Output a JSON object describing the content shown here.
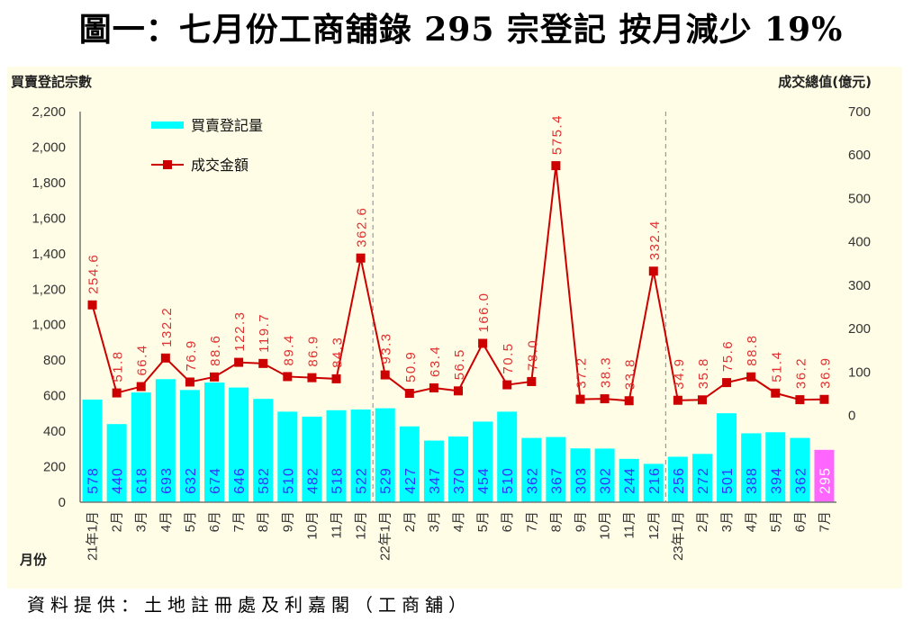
{
  "title": "圖一：七月份工商舖錄 295 宗登記  按月減少 19%",
  "source": "資料提供：土地註冊處及利嘉閣（工商舖）",
  "colors": {
    "bar": "#00ffff",
    "bar_highlight": "#ff66ff",
    "line": "#cc0000",
    "bar_label": "#3333ff",
    "line_label": "#e03030",
    "background": "#fffde6"
  },
  "chart_data": {
    "type": "bar+line",
    "title": "圖一：七月份工商舖錄 295 宗登記  按月減少 19%",
    "xlabel": "月份",
    "ylabel": "買賣登記宗數",
    "y2label": "成交總值(億元)",
    "ylim": [
      0,
      2200
    ],
    "yticks": [
      "0",
      "200",
      "400",
      "600",
      "800",
      "1,000",
      "1,200",
      "1,400",
      "1,600",
      "1,800",
      "2,000",
      "2,200"
    ],
    "y2lim": [
      -200,
      700
    ],
    "y2ticks": [
      "0",
      "100",
      "200",
      "300",
      "400",
      "500",
      "600",
      "700"
    ],
    "legend_position": "top-left",
    "grid": false,
    "categories": [
      "21年1月",
      "2月",
      "3月",
      "4月",
      "5月",
      "6月",
      "7月",
      "8月",
      "9月",
      "10月",
      "11月",
      "12月",
      "22年1月",
      "2月",
      "3月",
      "4月",
      "5月",
      "6月",
      "7月",
      "8月",
      "9月",
      "10月",
      "11月",
      "12月",
      "23年1月",
      "2月",
      "3月",
      "4月",
      "5月",
      "6月",
      "7月"
    ],
    "series": [
      {
        "name": "買賣登記量",
        "axis": "left",
        "kind": "bar",
        "values": [
          578,
          440,
          618,
          693,
          632,
          674,
          646,
          582,
          510,
          482,
          518,
          522,
          529,
          427,
          347,
          370,
          454,
          510,
          362,
          367,
          303,
          302,
          244,
          216,
          256,
          272,
          501,
          388,
          394,
          362,
          295
        ]
      },
      {
        "name": "成交金額",
        "axis": "right",
        "kind": "line",
        "values": [
          254.6,
          51.8,
          66.4,
          132.2,
          76.9,
          88.6,
          122.3,
          119.7,
          89.4,
          86.9,
          84.3,
          362.6,
          93.3,
          50.9,
          63.4,
          56.5,
          166.0,
          70.5,
          78.0,
          575.4,
          37.2,
          38.3,
          33.8,
          332.4,
          34.9,
          35.8,
          75.6,
          88.8,
          51.4,
          36.2,
          36.9
        ],
        "labels": [
          "254.6",
          "51.8",
          "66.4",
          "132.2",
          "76.9",
          "88.6",
          "122.3",
          "119.7",
          "89.4",
          "86.9",
          "84.3",
          "362.6",
          "93.3",
          "50.9",
          "63.4",
          "56.5",
          "166.0",
          "70.5",
          "78.0",
          "575.4",
          "37.2",
          "38.3",
          "33.8",
          "332.4",
          "34.9",
          "35.8",
          "75.6",
          "88.8",
          "51.4",
          "36.2",
          "36.9"
        ]
      }
    ],
    "highlight_index": 30
  }
}
